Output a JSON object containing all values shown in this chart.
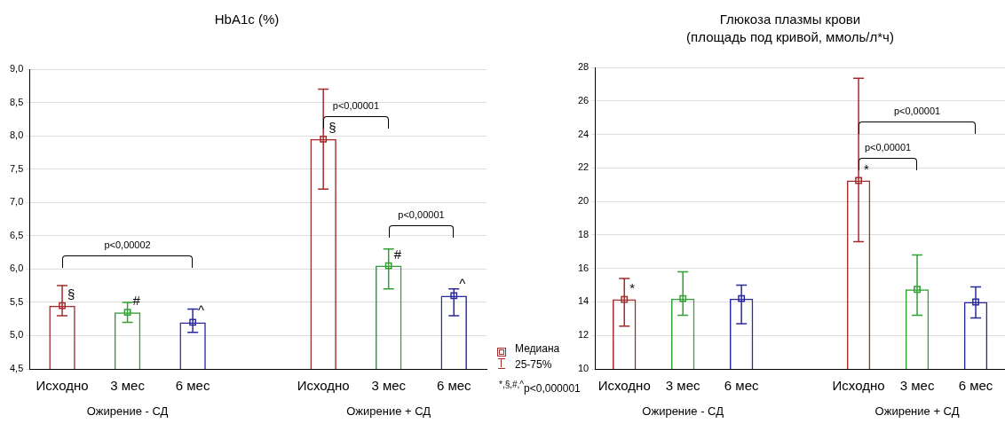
{
  "chart_data": [
    {
      "type": "bar",
      "title": "HbA1c (%)",
      "categories": [
        "Исходно",
        "3 мес",
        "6 мес",
        null,
        "Исходно",
        "3 мес",
        "6 мес"
      ],
      "series": [
        {
          "values": [
            5.45,
            5.35,
            5.2,
            null,
            7.95,
            6.05,
            5.6
          ],
          "colors": [
            "#a52a2a",
            "#33a033",
            "#2a2aa0",
            null,
            "#a52a2a",
            "#33a033",
            "#2a2aa0"
          ],
          "errors": [
            [
              5.3,
              5.75
            ],
            [
              5.2,
              5.5
            ],
            [
              5.05,
              5.4
            ],
            null,
            [
              7.2,
              8.7
            ],
            [
              5.7,
              6.3
            ],
            [
              5.3,
              5.7
            ]
          ]
        },
        {
          "type": "scatter",
          "marker": "square",
          "values": [
            5.45,
            5.35,
            5.2,
            null,
            7.95,
            6.05,
            5.6
          ],
          "colors": [
            "#a52a2a",
            "#33a033",
            "#2a2aa0",
            null,
            "#a52a2a",
            "#33a033",
            "#2a2aa0"
          ]
        }
      ],
      "ylim": [
        4.5,
        9
      ],
      "yticks": [
        {
          "value": 4.5,
          "label": "4,5"
        },
        {
          "value": 5,
          "label": "5,0"
        },
        {
          "value": 5.5,
          "label": "5,5"
        },
        {
          "value": 6,
          "label": "6,0"
        },
        {
          "value": 6.5,
          "label": "6,5"
        },
        {
          "value": 7,
          "label": "7,0"
        },
        {
          "value": 7.5,
          "label": "7,5"
        },
        {
          "value": 8,
          "label": "8,0"
        },
        {
          "value": 8.5,
          "label": "8,5"
        },
        {
          "value": 9,
          "label": "9,0"
        }
      ],
      "grid": "y",
      "annotations": [
        "§",
        "#",
        "^",
        "§",
        "#",
        "^",
        "p<0,00002",
        "p<0,00001",
        "p<0,00001",
        "Медиана",
        "25-75%",
        "$^{*,§,#,^}$p<0,000001",
        "Ожирение - СД",
        "Ожирение + СД"
      ]
    },
    {
      "type": "bar",
      "title": "Глюкоза плазмы крови",
      "subtitle": "(площадь под кривой, ммоль/л*ч)",
      "categories": [
        "Исходно",
        "3 мес",
        "6 мес",
        null,
        "Исходно",
        "3 мес",
        "6 мес"
      ],
      "series": [
        {
          "values": [
            14.15,
            14.2,
            14.2,
            null,
            21.25,
            14.75,
            14.0
          ],
          "colors": [
            "#a52a2a",
            "#33a033",
            "#2a2aa0",
            null,
            "#a52a2a",
            "#33a033",
            "#2a2aa0"
          ],
          "errors": [
            [
              12.55,
              15.4
            ],
            [
              13.2,
              15.8
            ],
            [
              12.7,
              15.0
            ],
            null,
            [
              17.6,
              27.35
            ],
            [
              13.2,
              16.8
            ],
            [
              13.05,
              14.9
            ]
          ]
        },
        {
          "type": "scatter",
          "marker": "square",
          "values": [
            14.15,
            14.2,
            14.2,
            null,
            21.25,
            14.75,
            14.0
          ],
          "colors": [
            "#a52a2a",
            "#33a033",
            "#2a2aa0",
            null,
            "#a52a2a",
            "#33a033",
            "#2a2aa0"
          ]
        }
      ],
      "ylim": [
        10,
        28
      ],
      "yticks": [
        10,
        12,
        14,
        16,
        18,
        20,
        22,
        24,
        26,
        28
      ],
      "grid": "y",
      "annotations": [
        "*",
        "*",
        "p<0,00001",
        "p<0,00001",
        "Ожирение - СД",
        "Ожирение + СД"
      ]
    }
  ]
}
